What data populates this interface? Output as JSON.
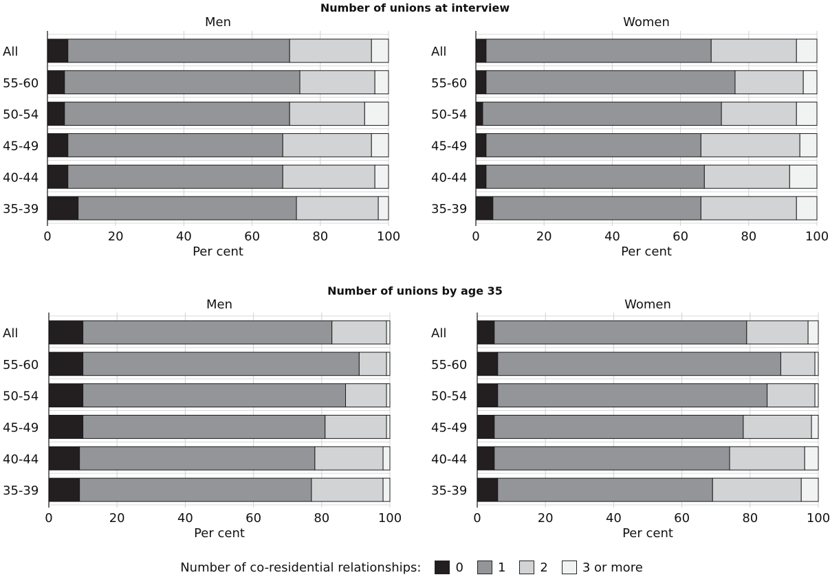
{
  "sections": [
    {
      "title": "Number of unions at interview"
    },
    {
      "title": "Number of unions by age 35"
    }
  ],
  "legend": {
    "title": "Number of co-residential relationships:",
    "items": [
      {
        "label": "0",
        "color": "#231f20"
      },
      {
        "label": "1",
        "color": "#939598"
      },
      {
        "label": "2",
        "color": "#d1d3d4"
      },
      {
        "label": "3 or more",
        "color": "#f1f2f2"
      }
    ]
  },
  "chart_data": [
    {
      "type": "bar",
      "orientation": "horizontal",
      "stacked": true,
      "section": "Number of unions at interview",
      "title": "Men",
      "xlabel": "Per cent",
      "xlim": [
        0,
        100
      ],
      "xticks": [
        "0",
        "20",
        "40",
        "60",
        "80",
        "100"
      ],
      "categories": [
        "All",
        "55-60",
        "50-54",
        "45-49",
        "40-44",
        "35-39"
      ],
      "series": [
        {
          "name": "0",
          "values": [
            6,
            5,
            5,
            6,
            6,
            9
          ]
        },
        {
          "name": "1",
          "values": [
            65,
            69,
            66,
            63,
            63,
            64
          ]
        },
        {
          "name": "2",
          "values": [
            24,
            22,
            22,
            26,
            27,
            24
          ]
        },
        {
          "name": "3 or more",
          "values": [
            5,
            4,
            7,
            5,
            4,
            3
          ]
        }
      ]
    },
    {
      "type": "bar",
      "orientation": "horizontal",
      "stacked": true,
      "section": "Number of unions at interview",
      "title": "Women",
      "xlabel": "Per cent",
      "xlim": [
        0,
        100
      ],
      "xticks": [
        "0",
        "20",
        "40",
        "60",
        "80",
        "100"
      ],
      "categories": [
        "All",
        "55-60",
        "50-54",
        "45-49",
        "40-44",
        "35-39"
      ],
      "series": [
        {
          "name": "0",
          "values": [
            3,
            3,
            2,
            3,
            3,
            5
          ]
        },
        {
          "name": "1",
          "values": [
            66,
            73,
            70,
            63,
            64,
            61
          ]
        },
        {
          "name": "2",
          "values": [
            25,
            20,
            22,
            29,
            25,
            28
          ]
        },
        {
          "name": "3 or more",
          "values": [
            6,
            4,
            6,
            5,
            8,
            6
          ]
        }
      ]
    },
    {
      "type": "bar",
      "orientation": "horizontal",
      "stacked": true,
      "section": "Number of unions by age 35",
      "title": "Men",
      "xlabel": "Per cent",
      "xlim": [
        0,
        100
      ],
      "xticks": [
        "0",
        "20",
        "40",
        "60",
        "80",
        "100"
      ],
      "categories": [
        "All",
        "55-60",
        "50-54",
        "45-49",
        "40-44",
        "35-39"
      ],
      "series": [
        {
          "name": "0",
          "values": [
            10,
            10,
            10,
            10,
            9,
            9
          ]
        },
        {
          "name": "1",
          "values": [
            73,
            81,
            77,
            71,
            69,
            68
          ]
        },
        {
          "name": "2",
          "values": [
            16,
            8,
            12,
            18,
            20,
            21
          ]
        },
        {
          "name": "3 or more",
          "values": [
            1,
            1,
            1,
            1,
            2,
            2
          ]
        }
      ]
    },
    {
      "type": "bar",
      "orientation": "horizontal",
      "stacked": true,
      "section": "Number of unions by age 35",
      "title": "Women",
      "xlabel": "Per cent",
      "xlim": [
        0,
        100
      ],
      "xticks": [
        "0",
        "20",
        "40",
        "60",
        "80",
        "100"
      ],
      "categories": [
        "All",
        "55-60",
        "50-54",
        "45-49",
        "40-44",
        "35-39"
      ],
      "series": [
        {
          "name": "0",
          "values": [
            5,
            6,
            6,
            5,
            5,
            6
          ]
        },
        {
          "name": "1",
          "values": [
            74,
            83,
            79,
            73,
            69,
            63
          ]
        },
        {
          "name": "2",
          "values": [
            18,
            10,
            14,
            20,
            22,
            26
          ]
        },
        {
          "name": "3 or more",
          "values": [
            3,
            1,
            1,
            2,
            4,
            5
          ]
        }
      ]
    }
  ]
}
